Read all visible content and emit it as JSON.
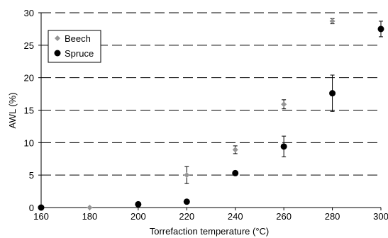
{
  "chart_data": {
    "type": "scatter",
    "title": "",
    "xlabel": "Torrefaction temperature (°C)",
    "ylabel": "AWL (%)",
    "xlim": [
      160,
      300
    ],
    "ylim": [
      0,
      30
    ],
    "x_ticks": [
      160,
      180,
      200,
      220,
      240,
      260,
      280,
      300
    ],
    "y_ticks": [
      0,
      5,
      10,
      15,
      20,
      25,
      30
    ],
    "grid": "horizontal dashed",
    "legend_position": "top-left",
    "series": [
      {
        "name": "Beech",
        "marker": "diamond",
        "color": "#969696",
        "points": [
          {
            "x": 180,
            "y": 0.0,
            "err": 0
          },
          {
            "x": 220,
            "y": 5.0,
            "err": 1.3
          },
          {
            "x": 240,
            "y": 8.9,
            "err": 0.6
          },
          {
            "x": 260,
            "y": 15.9,
            "err": 0.7
          },
          {
            "x": 280,
            "y": 28.7,
            "err": 0.4
          }
        ]
      },
      {
        "name": "Spruce",
        "marker": "circle",
        "color": "#000000",
        "points": [
          {
            "x": 160,
            "y": 0.0,
            "err": 0
          },
          {
            "x": 200,
            "y": 0.5,
            "err": 0
          },
          {
            "x": 220,
            "y": 0.9,
            "err": 0
          },
          {
            "x": 240,
            "y": 5.3,
            "err": 0
          },
          {
            "x": 260,
            "y": 9.4,
            "err": 1.6
          },
          {
            "x": 280,
            "y": 17.6,
            "err": 2.8
          },
          {
            "x": 300,
            "y": 27.5,
            "err": 1.2
          }
        ]
      }
    ]
  }
}
